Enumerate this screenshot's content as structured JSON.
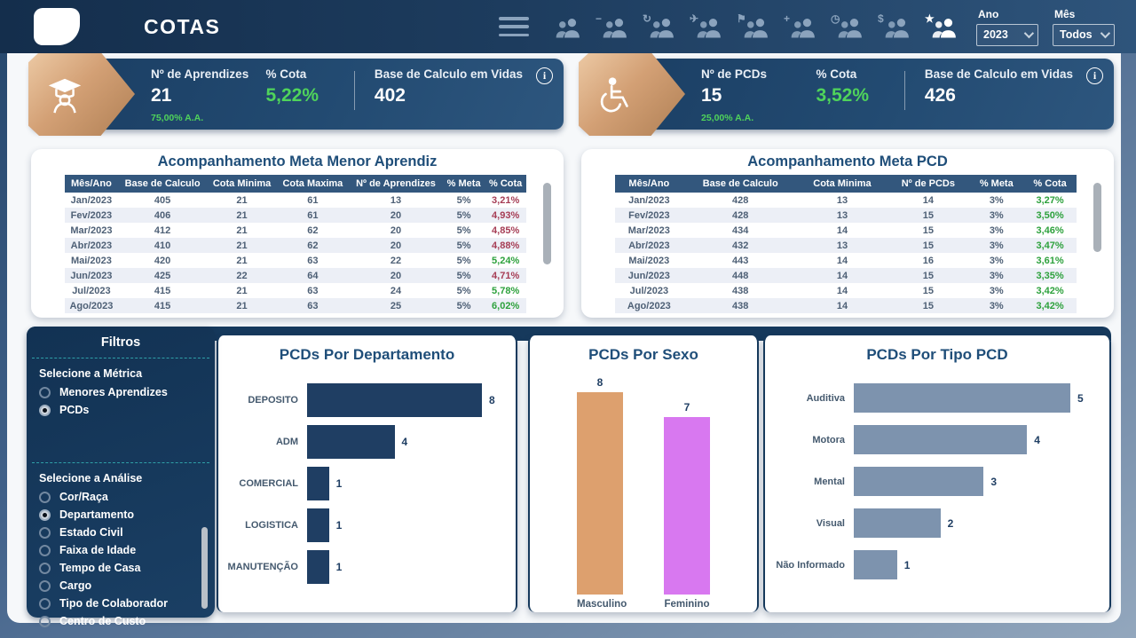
{
  "header": {
    "title": "COTAS",
    "nav_icons": [
      {
        "name": "people-group-icon",
        "mod": "",
        "active": false
      },
      {
        "name": "people-remove-icon",
        "mod": "−",
        "active": false
      },
      {
        "name": "people-sync-icon",
        "mod": "↻",
        "active": false
      },
      {
        "name": "people-travel-icon",
        "mod": "✈",
        "active": false
      },
      {
        "name": "people-announce-icon",
        "mod": "⚑",
        "active": false
      },
      {
        "name": "people-add-icon",
        "mod": "+",
        "active": false
      },
      {
        "name": "people-time-icon",
        "mod": "◷",
        "active": false
      },
      {
        "name": "people-pay-icon",
        "mod": "$",
        "active": false
      },
      {
        "name": "people-star-icon",
        "mod": "★",
        "active": true
      }
    ],
    "year": {
      "label": "Ano",
      "value": "2023"
    },
    "month": {
      "label": "Mês",
      "value": "Todos"
    }
  },
  "kpis": [
    {
      "icon": "graduate-icon",
      "metric_label": "Nº de Aprendizes",
      "metric_value": "21",
      "cota_label": "% Cota",
      "cota_value": "5,22%",
      "base_label": "Base de Calculo em Vidas",
      "base_value": "402",
      "footnote": "75,00% A.A.",
      "info": "i"
    },
    {
      "icon": "wheelchair-icon",
      "metric_label": "Nº de PCDs",
      "metric_value": "15",
      "cota_label": "% Cota",
      "cota_value": "3,52%",
      "base_label": "Base de Calculo em Vidas",
      "base_value": "426",
      "footnote": "25,00% A.A.",
      "info": "i"
    }
  ],
  "tables": [
    {
      "title": "Acompanhamento Meta Menor Aprendiz",
      "columns": [
        "Mês/Ano",
        "Base de Calculo",
        "Cota Minima",
        "Cota Maxima",
        "Nº de Aprendizes",
        "% Meta",
        "% Cota"
      ],
      "rows": [
        [
          "Jan/2023",
          "405",
          "21",
          "61",
          "13",
          "5%",
          "3,21%"
        ],
        [
          "Fev/2023",
          "406",
          "21",
          "61",
          "20",
          "5%",
          "4,93%"
        ],
        [
          "Mar/2023",
          "412",
          "21",
          "62",
          "20",
          "5%",
          "4,85%"
        ],
        [
          "Abr/2023",
          "410",
          "21",
          "62",
          "20",
          "5%",
          "4,88%"
        ],
        [
          "Mai/2023",
          "420",
          "21",
          "63",
          "22",
          "5%",
          "5,24%"
        ],
        [
          "Jun/2023",
          "425",
          "22",
          "64",
          "20",
          "5%",
          "4,71%"
        ],
        [
          "Jul/2023",
          "415",
          "21",
          "63",
          "24",
          "5%",
          "5,78%"
        ],
        [
          "Ago/2023",
          "415",
          "21",
          "63",
          "25",
          "5%",
          "6,02%"
        ]
      ],
      "cota_status": [
        "red",
        "red",
        "red",
        "red",
        "green",
        "red",
        "green",
        "green"
      ]
    },
    {
      "title": "Acompanhamento Meta PCD",
      "columns": [
        "Mês/Ano",
        "Base de Calculo",
        "Cota Minima",
        "Nº de PCDs",
        "% Meta",
        "% Cota"
      ],
      "rows": [
        [
          "Jan/2023",
          "428",
          "13",
          "14",
          "3%",
          "3,27%"
        ],
        [
          "Fev/2023",
          "428",
          "13",
          "15",
          "3%",
          "3,50%"
        ],
        [
          "Mar/2023",
          "434",
          "14",
          "15",
          "3%",
          "3,46%"
        ],
        [
          "Abr/2023",
          "432",
          "13",
          "15",
          "3%",
          "3,47%"
        ],
        [
          "Mai/2023",
          "443",
          "14",
          "16",
          "3%",
          "3,61%"
        ],
        [
          "Jun/2023",
          "448",
          "14",
          "15",
          "3%",
          "3,35%"
        ],
        [
          "Jul/2023",
          "438",
          "14",
          "15",
          "3%",
          "3,42%"
        ],
        [
          "Ago/2023",
          "438",
          "14",
          "15",
          "3%",
          "3,42%"
        ]
      ],
      "cota_status": [
        "green",
        "green",
        "green",
        "green",
        "green",
        "green",
        "green",
        "green"
      ]
    }
  ],
  "filter_panel": {
    "title": "Filtros",
    "metric": {
      "label": "Selecione a Métrica",
      "options": [
        {
          "label": "Menores Aprendizes",
          "selected": false
        },
        {
          "label": "PCDs",
          "selected": true
        }
      ]
    },
    "analysis": {
      "label": "Selecione a Análise",
      "options": [
        {
          "label": "Cor/Raça",
          "selected": false
        },
        {
          "label": "Departamento",
          "selected": true
        },
        {
          "label": "Estado Civil",
          "selected": false
        },
        {
          "label": "Faixa de Idade",
          "selected": false
        },
        {
          "label": "Tempo de Casa",
          "selected": false
        },
        {
          "label": "Cargo",
          "selected": false
        },
        {
          "label": "Tipo de Colaborador",
          "selected": false
        },
        {
          "label": "Centro de Custo",
          "selected": false
        }
      ]
    }
  },
  "chart_data": [
    {
      "type": "bar",
      "orientation": "horizontal",
      "title": "PCDs Por Departamento",
      "categories": [
        "DEPOSITO",
        "ADM",
        "COMERCIAL",
        "LOGISTICA",
        "MANUTENÇÃO"
      ],
      "values": [
        8,
        4,
        1,
        1,
        1
      ],
      "xlim": [
        0,
        8
      ],
      "bar_color": "#1f3e63",
      "grid": false,
      "legend": "none"
    },
    {
      "type": "bar",
      "orientation": "vertical",
      "title": "PCDs Por Sexo",
      "categories": [
        "Masculino",
        "Feminino"
      ],
      "values": [
        8,
        7
      ],
      "ylim": [
        0,
        8
      ],
      "bar_colors": [
        "#dda06e",
        "#d878f0"
      ],
      "grid": false,
      "legend": "none"
    },
    {
      "type": "bar",
      "orientation": "horizontal",
      "title": "PCDs Por Tipo PCD",
      "categories": [
        "Auditiva",
        "Motora",
        "Mental",
        "Visual",
        "Não Informado"
      ],
      "values": [
        5,
        4,
        3,
        2,
        1
      ],
      "xlim": [
        0,
        5
      ],
      "bar_color": "#7d93ae",
      "grid": false,
      "legend": "none"
    }
  ],
  "colors": {
    "header_navy": "#1d3c5e",
    "card_navy": "#224a71",
    "accent_navy": "#1f4e79",
    "badge_tan": "#d3a075",
    "green": "#4fd35b",
    "table_green": "#2da13c",
    "table_red": "#a63d55",
    "teal_dash": "#2fa0a8",
    "bar_navy": "#1f3e63",
    "bar_tan": "#dda06e",
    "bar_magenta": "#d878f0",
    "bar_slate": "#7d93ae"
  }
}
